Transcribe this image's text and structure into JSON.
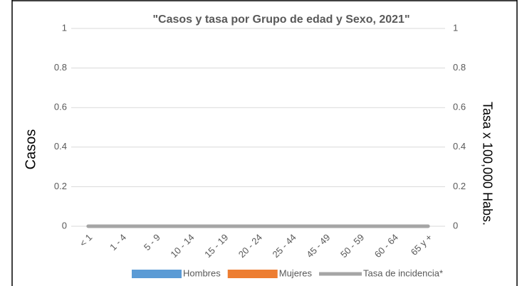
{
  "chart_data": {
    "type": "bar",
    "title": "\"Casos y tasa por Grupo de edad y Sexo, 2021\"",
    "y_label": "Casos",
    "y2_label": "Tasa x 100,000 Habs.",
    "categories": [
      "< 1",
      "1 - 4",
      "5 - 9",
      "10 - 14",
      "15 - 19",
      "20 - 24",
      "25 - 44",
      "45 - 49",
      "50 - 59",
      "60 - 64",
      "65 y +"
    ],
    "series": [
      {
        "name": "Hombres",
        "color": "#5b9bd5",
        "values": [
          0,
          0,
          0,
          0,
          0,
          0,
          0,
          0,
          0,
          0,
          0
        ]
      },
      {
        "name": "Mujeres",
        "color": "#ed7d31",
        "values": [
          0,
          0,
          0,
          0,
          0,
          0,
          0,
          0,
          0,
          0,
          0
        ]
      },
      {
        "name": "Tasa de incidencia*",
        "color": "#a5a5a5",
        "type": "line",
        "axis": "y2",
        "values": [
          0,
          0,
          0,
          0,
          0,
          0,
          0,
          0,
          0,
          0,
          0
        ]
      }
    ],
    "ylim": [
      0,
      1
    ],
    "yticks": [
      0,
      0.2,
      0.4,
      0.6,
      0.8,
      1
    ],
    "y2lim": [
      0,
      1
    ],
    "y2ticks": [
      0,
      0.2,
      0.4,
      0.6,
      0.8,
      1
    ],
    "grid": true,
    "legend": "bottom"
  }
}
